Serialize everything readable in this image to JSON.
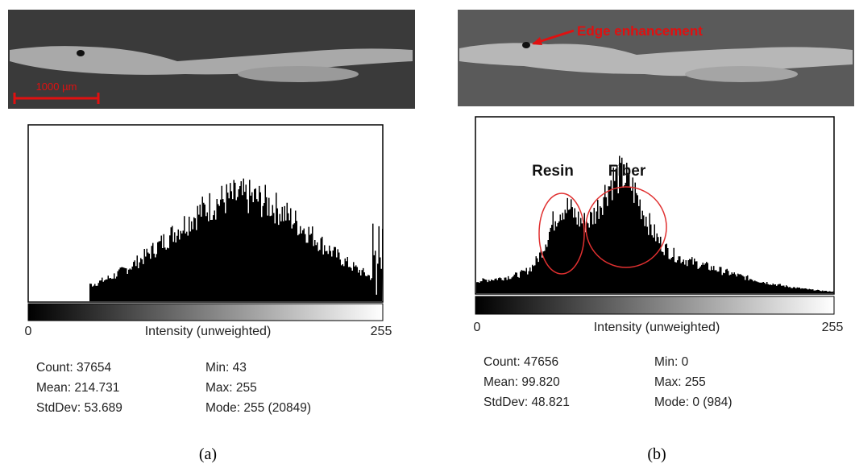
{
  "panels": [
    {
      "label": "(a)",
      "scale_bar": "1000 µm",
      "axis": {
        "min": "0",
        "max": "255",
        "title": "Intensity (unweighted)"
      },
      "stats": [
        [
          "Count: 37654",
          "Min: 43"
        ],
        [
          "Mean: 214.731",
          "Max: 255"
        ],
        [
          "StdDev: 53.689",
          "Mode: 255 (20849)"
        ]
      ]
    },
    {
      "label": "(b)",
      "annotation": "Edge enhancement",
      "peaks": [
        "Resin",
        "Fiber"
      ],
      "axis": {
        "min": "0",
        "max": "255",
        "title": "Intensity (unweighted)"
      },
      "stats": [
        [
          "Count: 47656",
          "Min: 0"
        ],
        [
          "Mean: 99.820",
          "Max: 255"
        ],
        [
          "StdDev: 48.821",
          "Mode: 0 (984)"
        ]
      ]
    }
  ]
}
